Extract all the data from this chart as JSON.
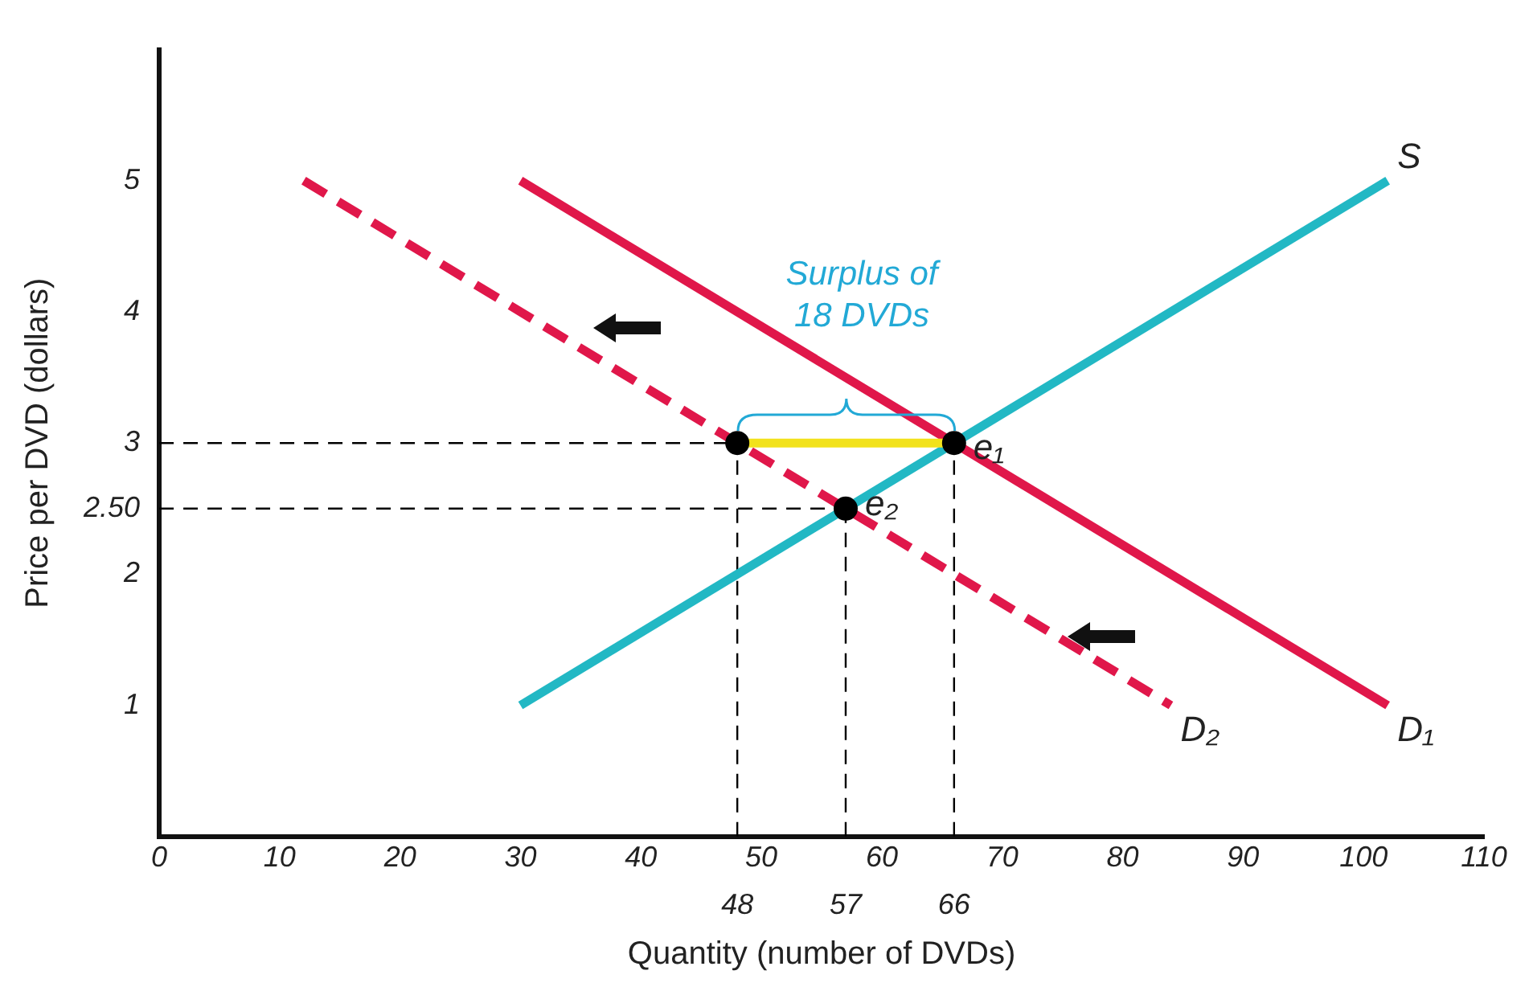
{
  "chart_data": {
    "type": "line",
    "xlabel": "Quantity (number of DVDs)",
    "ylabel": "Price per DVD (dollars)",
    "xlim": [
      0,
      110
    ],
    "ylim": [
      0,
      6
    ],
    "xticks": [
      0,
      10,
      20,
      30,
      40,
      50,
      60,
      70,
      80,
      90,
      100,
      110
    ],
    "yticks": [
      1,
      2,
      {
        "value": 2.5,
        "label": "2.50"
      },
      3,
      4,
      5
    ],
    "grid": false,
    "legend": false,
    "annotations": [
      "Surplus of 18 DVDs",
      {
        "text": "48",
        "x": 48,
        "y": 0
      },
      {
        "text": "57",
        "x": 57,
        "y": 0
      },
      {
        "text": "66",
        "x": 66,
        "y": 0
      }
    ],
    "series": [
      {
        "name": "S",
        "color": "#22b8c4",
        "x": [
          30,
          102
        ],
        "values": [
          1,
          5
        ]
      },
      {
        "name": "D₁",
        "color": "#e0174a",
        "x": [
          30,
          102
        ],
        "values": [
          5,
          1
        ]
      },
      {
        "name": "D₂",
        "color": "#e0174a",
        "line_style": "dashed",
        "x": [
          12,
          84
        ],
        "values": [
          5,
          1
        ]
      },
      {
        "color": "#f2e21c",
        "x": [
          48,
          66
        ],
        "values": [
          3,
          3
        ]
      },
      {
        "color": "#000000",
        "line_style": "dashed",
        "x": [
          0,
          66
        ],
        "values": [
          3,
          3
        ]
      },
      {
        "color": "#000000",
        "line_style": "dashed",
        "x": [
          0,
          57
        ],
        "values": [
          2.5,
          2.5
        ]
      },
      {
        "color": "#000000",
        "line_style": "dashed",
        "x": [
          48,
          48
        ],
        "values": [
          0,
          3
        ]
      },
      {
        "color": "#000000",
        "line_style": "dashed",
        "x": [
          57,
          57
        ],
        "values": [
          0,
          2.5
        ]
      },
      {
        "color": "#000000",
        "line_style": "dashed",
        "x": [
          66,
          66
        ],
        "values": [
          0,
          3
        ]
      },
      {
        "type": "scatter",
        "marker": "circle",
        "color": "#000000",
        "x": [
          48
        ],
        "values": [
          3
        ]
      },
      {
        "type": "scatter",
        "name": "e₁",
        "marker": "circle",
        "color": "#000000",
        "x": [
          66
        ],
        "values": [
          3
        ]
      },
      {
        "type": "scatter",
        "name": "e₂",
        "marker": "circle",
        "color": "#000000",
        "x": [
          57
        ],
        "values": [
          2.5
        ]
      }
    ]
  }
}
